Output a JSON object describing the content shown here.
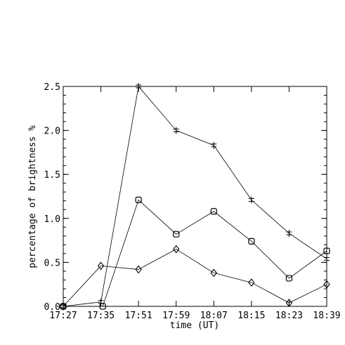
{
  "chart_data": {
    "type": "line",
    "title": "",
    "xlabel": "time (UT)",
    "ylabel": "percentage of brightness %",
    "x_categories": [
      "17:27",
      "17:35",
      "17:51",
      "17:59",
      "18:07",
      "18:15",
      "18:23",
      "18:39"
    ],
    "ylim": [
      0,
      2.5
    ],
    "y_ticks": [
      "0.0",
      "0.5",
      "1.0",
      "1.5",
      "2.0",
      "2.5"
    ],
    "grid": false,
    "legend": "none",
    "series": [
      {
        "marker": "asterisk",
        "x": [
          0,
          1,
          2,
          3,
          4,
          5,
          6,
          7
        ],
        "values": [
          0.0,
          0.05,
          2.5,
          2.0,
          1.83,
          1.21,
          0.83,
          0.54
        ]
      },
      {
        "marker": "square",
        "x": [
          0,
          1.05,
          2,
          3,
          4,
          5,
          6,
          7
        ],
        "values": [
          0.0,
          0.0,
          1.21,
          0.82,
          1.08,
          0.74,
          0.32,
          0.63
        ]
      },
      {
        "marker": "diamond",
        "x": [
          0,
          1,
          2,
          3,
          4,
          5,
          6,
          7
        ],
        "values": [
          0.0,
          0.46,
          0.42,
          0.65,
          0.38,
          0.27,
          0.04,
          0.25
        ]
      }
    ]
  }
}
